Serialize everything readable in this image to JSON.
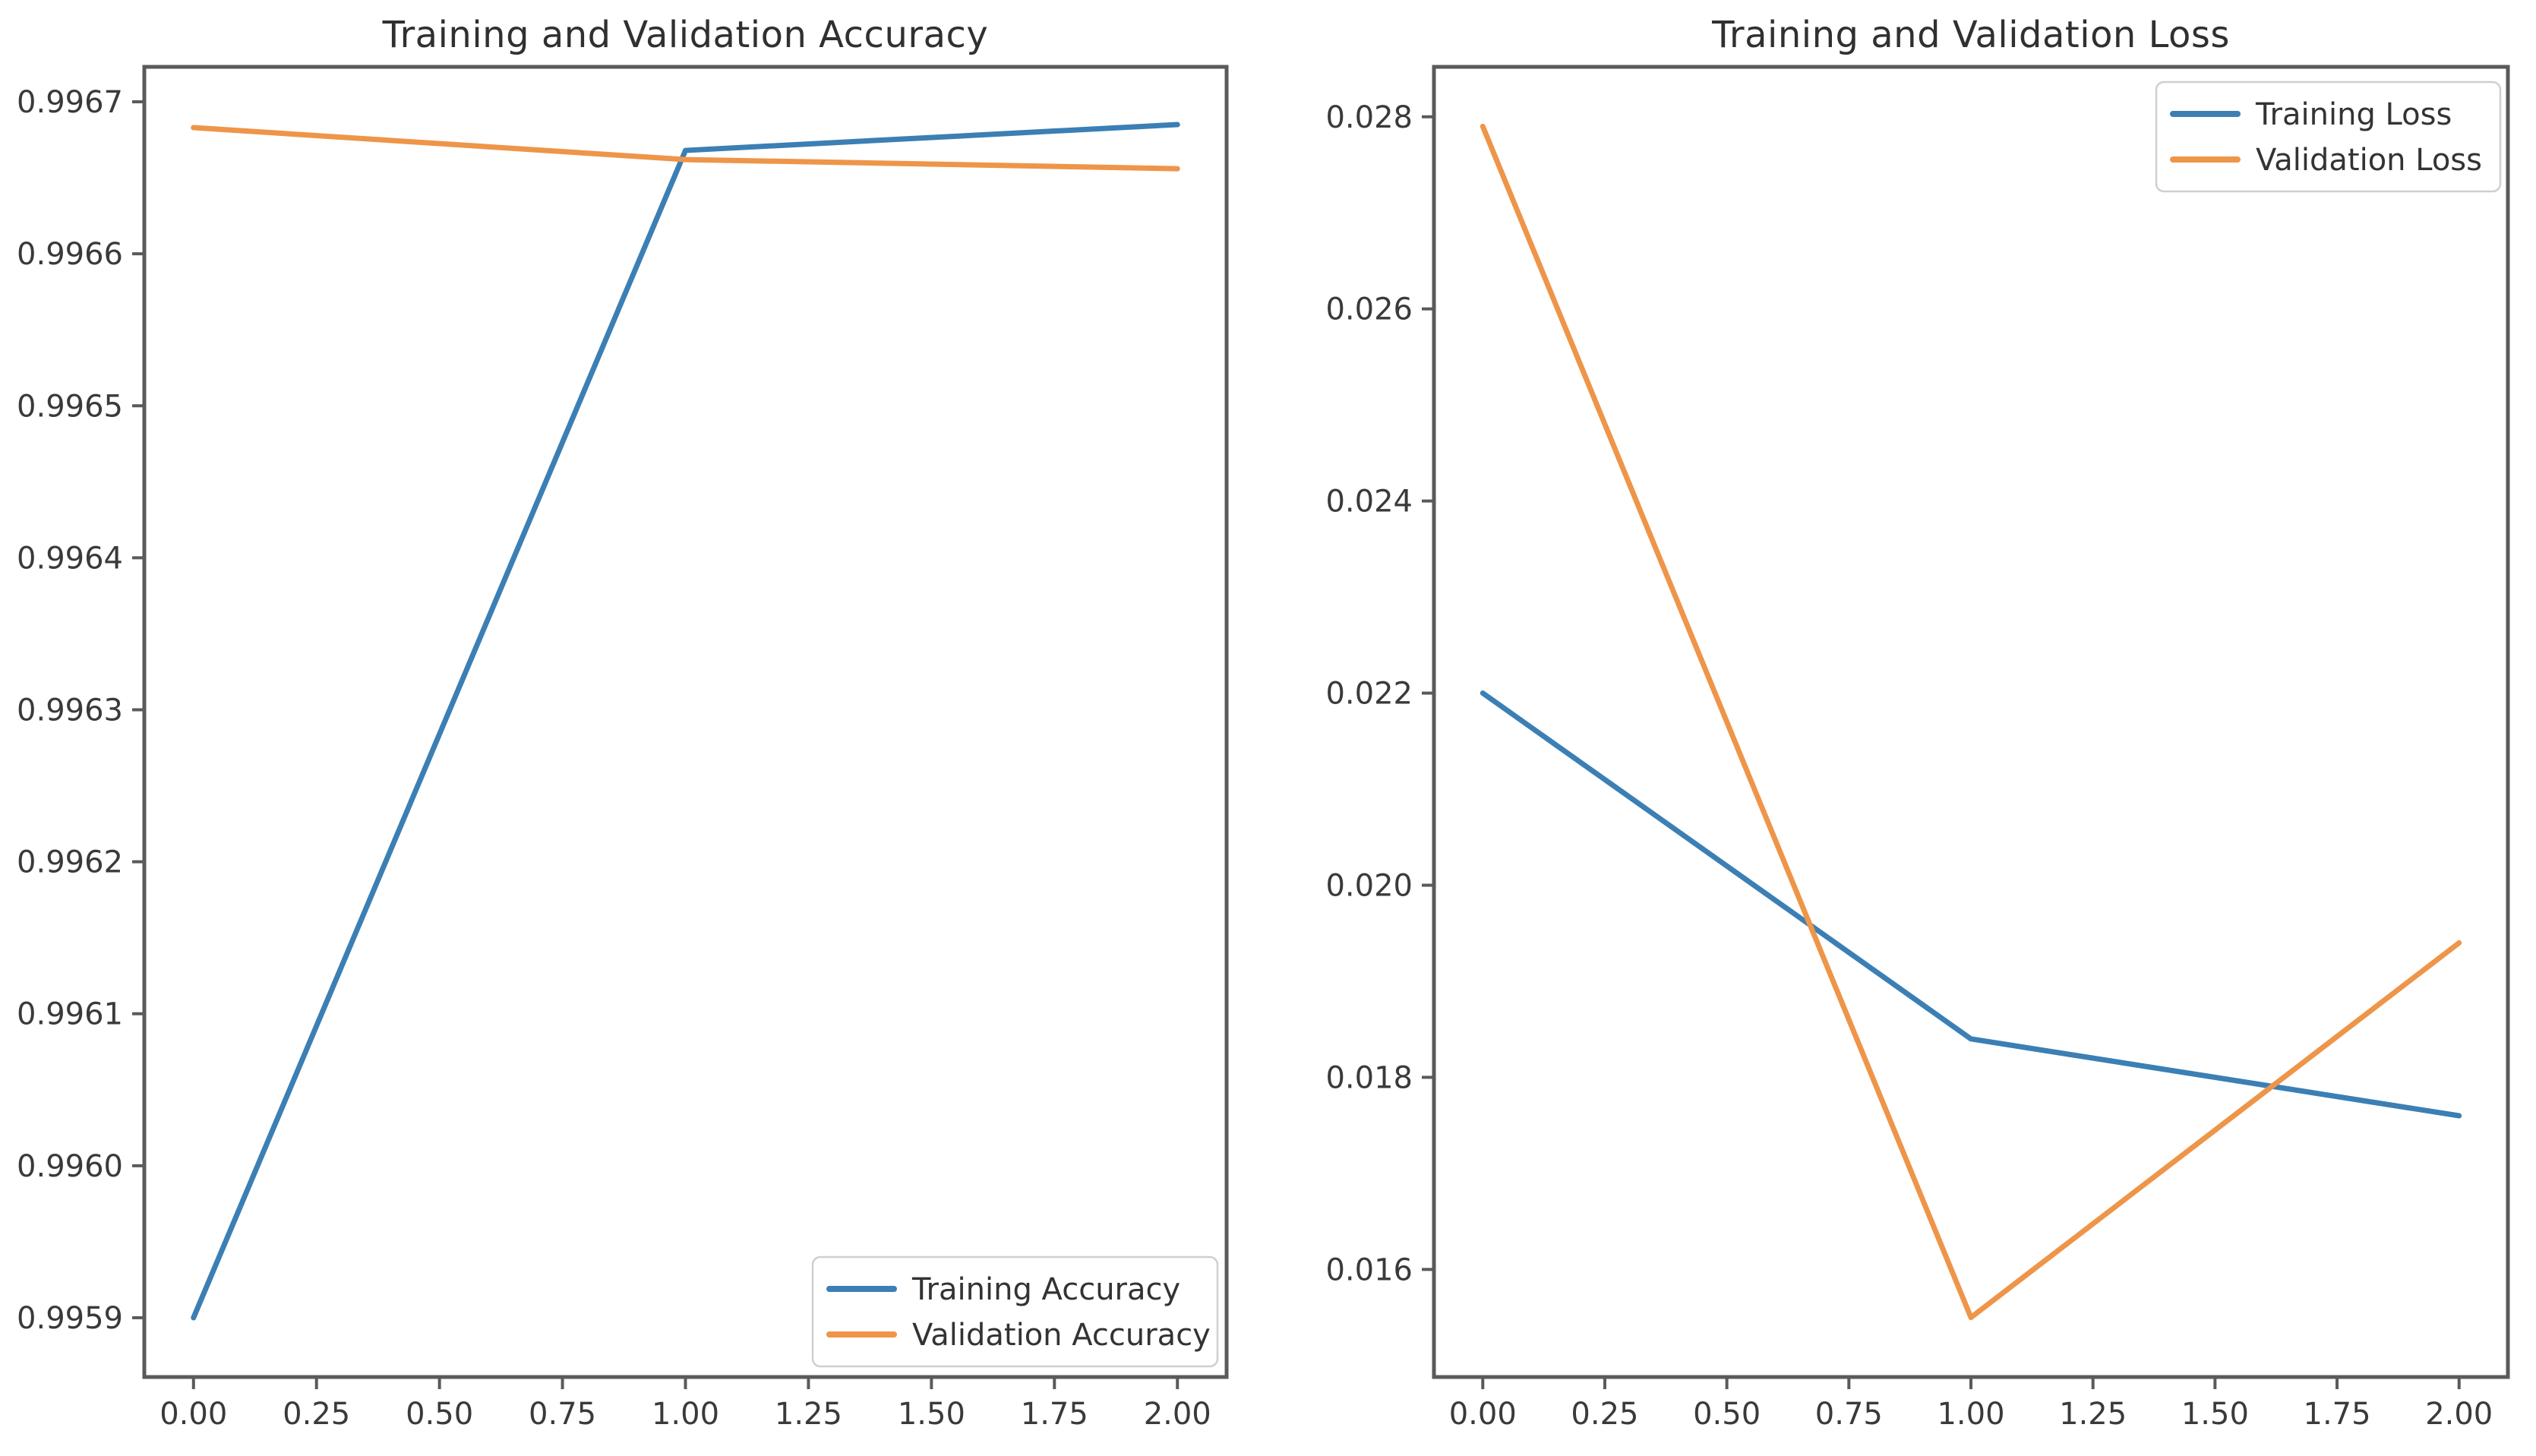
{
  "style": {
    "background": "#ffffff",
    "axis_color": "#5a5a5a",
    "tick_text_color": "#3a3a3a",
    "title_color": "#303030",
    "legend_border_color": "#cfcfcf",
    "legend_bg_color": "#ffffff",
    "training_color": "#3b7fb4",
    "validation_color": "#ee9549"
  },
  "chart_data": [
    {
      "type": "line",
      "title": "Training and Validation Accuracy",
      "x": [
        0,
        1,
        2
      ],
      "series": [
        {
          "name": "Training Accuracy",
          "color": "#3b7fb4",
          "values": [
            0.9959,
            0.996668,
            0.996685
          ]
        },
        {
          "name": "Validation Accuracy",
          "color": "#ee9549",
          "values": [
            0.996683,
            0.996662,
            0.996656
          ]
        }
      ],
      "xlim": [
        -0.1,
        2.1
      ],
      "ylim": [
        0.995861,
        0.996723
      ],
      "xtick_values": [
        0,
        0.25,
        0.5,
        0.75,
        1,
        1.25,
        1.5,
        1.75,
        2
      ],
      "xtick_labels": [
        "0.00",
        "0.25",
        "0.50",
        "0.75",
        "1.00",
        "1.25",
        "1.50",
        "1.75",
        "2.00"
      ],
      "ytick_values": [
        0.9959,
        0.996,
        0.9961,
        0.9962,
        0.9963,
        0.9964,
        0.9965,
        0.9966,
        0.9967
      ],
      "ytick_labels": [
        "0.9959",
        "0.9960",
        "0.9961",
        "0.9962",
        "0.9963",
        "0.9964",
        "0.9965",
        "0.9966",
        "0.9967"
      ],
      "legend_position": "lower-right",
      "grid": false
    },
    {
      "type": "line",
      "title": "Training and Validation Loss",
      "x": [
        0,
        1,
        2
      ],
      "series": [
        {
          "name": "Training Loss",
          "color": "#3b7fb4",
          "values": [
            0.022,
            0.0184,
            0.0176
          ]
        },
        {
          "name": "Validation Loss",
          "color": "#ee9549",
          "values": [
            0.0279,
            0.0155,
            0.0194
          ]
        }
      ],
      "xlim": [
        -0.1,
        2.1
      ],
      "ylim": [
        0.01488,
        0.02852
      ],
      "xtick_values": [
        0,
        0.25,
        0.5,
        0.75,
        1,
        1.25,
        1.5,
        1.75,
        2
      ],
      "xtick_labels": [
        "0.00",
        "0.25",
        "0.50",
        "0.75",
        "1.00",
        "1.25",
        "1.50",
        "1.75",
        "2.00"
      ],
      "ytick_values": [
        0.016,
        0.018,
        0.02,
        0.022,
        0.024,
        0.026,
        0.028
      ],
      "ytick_labels": [
        "0.016",
        "0.018",
        "0.020",
        "0.022",
        "0.024",
        "0.026",
        "0.028"
      ],
      "legend_position": "upper-right",
      "grid": false
    }
  ]
}
